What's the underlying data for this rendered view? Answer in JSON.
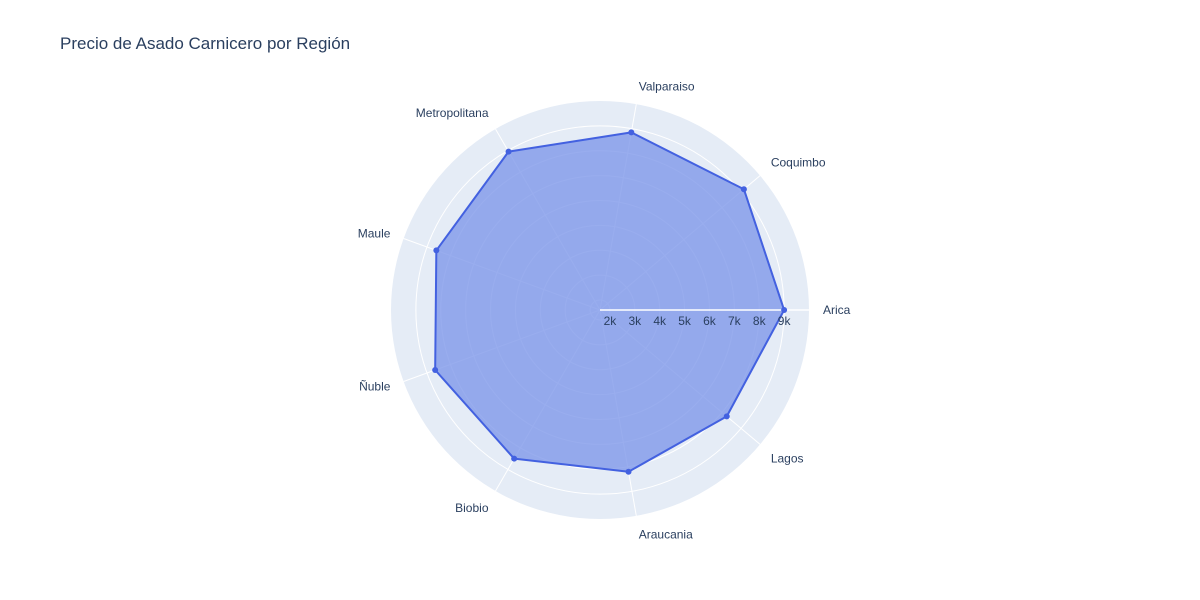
{
  "chart_data": {
    "type": "radar",
    "title": "Precio de Asado Carnicero por Región",
    "categories": [
      "Arica",
      "Coquimbo",
      "Valparaiso",
      "Metropolitana",
      "Maule",
      "Ñuble",
      "Biobio",
      "Araucania",
      "Lagos"
    ],
    "values": [
      9000,
      9150,
      8850,
      8950,
      8600,
      8650,
      8500,
      8200,
      8250
    ],
    "radial_ticks": [
      "2k",
      "3k",
      "4k",
      "5k",
      "6k",
      "7k",
      "8k",
      "9k"
    ],
    "radial_tick_values": [
      2000,
      3000,
      4000,
      5000,
      6000,
      7000,
      8000,
      9000
    ],
    "radial_range": [
      1600,
      10000
    ],
    "fill": true,
    "colors": {
      "line": "#4361e0",
      "fill": "#7f98ea",
      "polar_bg": "#e5ecf6",
      "grid": "#ffffff"
    }
  }
}
